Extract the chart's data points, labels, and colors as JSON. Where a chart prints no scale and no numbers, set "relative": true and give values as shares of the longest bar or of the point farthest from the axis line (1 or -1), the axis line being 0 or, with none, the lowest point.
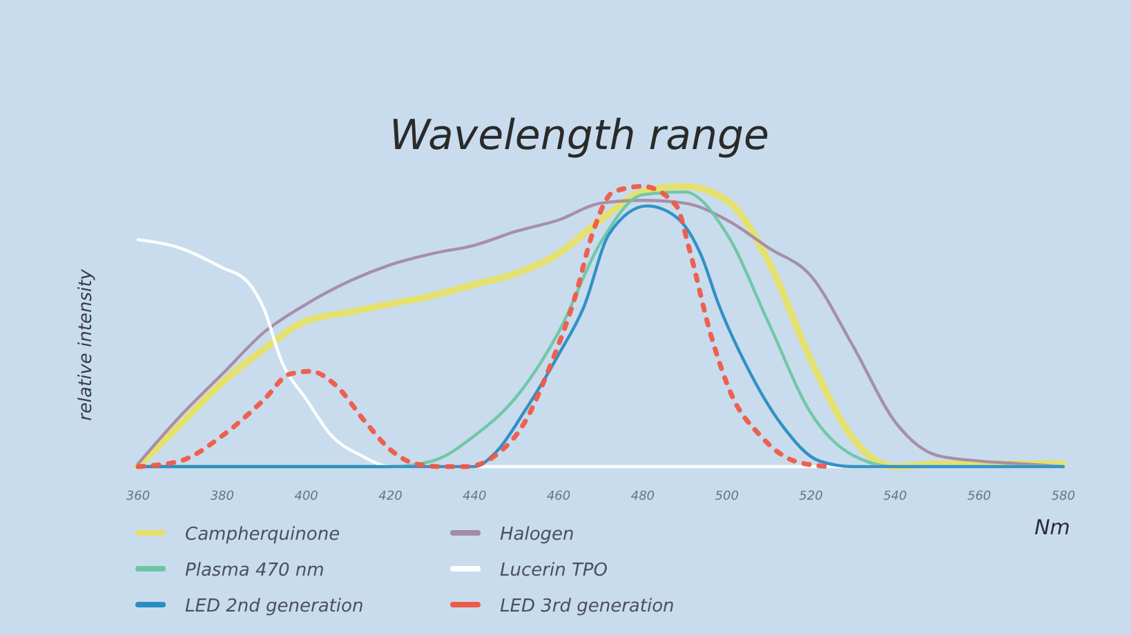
{
  "chart_data": {
    "type": "line",
    "title": "Wavelength range",
    "xlabel": "Nm",
    "ylabel": "relative intensity",
    "relative": true,
    "xlim": [
      360,
      580
    ],
    "xticks": [
      360,
      380,
      400,
      420,
      440,
      460,
      480,
      500,
      520,
      540,
      560,
      580
    ],
    "grid": false,
    "legend": "bottom",
    "marker": "none",
    "tick_labels": "x",
    "series": [
      {
        "name": "Campherquinone",
        "color": "#e6e06a",
        "x": [
          360,
          370,
          380,
          390,
          400,
          410,
          420,
          430,
          440,
          450,
          460,
          470,
          480,
          490,
          500,
          510,
          520,
          530,
          540,
          550,
          560,
          570,
          580
        ],
        "values": [
          0,
          0.15,
          0.3,
          0.42,
          0.52,
          0.55,
          0.58,
          0.61,
          0.65,
          0.69,
          0.76,
          0.88,
          0.98,
          1,
          0.95,
          0.73,
          0.38,
          0.1,
          0,
          0.01,
          0.01,
          0.01,
          0.01
        ]
      },
      {
        "name": "Halogen",
        "color": "#a48aa6",
        "x": [
          360,
          370,
          380,
          390,
          400,
          410,
          420,
          430,
          440,
          450,
          460,
          470,
          480,
          490,
          500,
          510,
          520,
          530,
          540,
          550,
          560,
          570,
          580
        ],
        "values": [
          0.01,
          0.18,
          0.33,
          0.48,
          0.58,
          0.66,
          0.72,
          0.76,
          0.79,
          0.84,
          0.88,
          0.94,
          0.95,
          0.94,
          0.88,
          0.78,
          0.68,
          0.43,
          0.16,
          0.04,
          0.02,
          0.01,
          0
        ]
      },
      {
        "name": "Plasma 470 nm",
        "color": "#6cc6a4",
        "x": [
          360,
          410,
          420,
          430,
          440,
          450,
          460,
          470,
          480,
          490,
          500,
          510,
          520,
          530,
          540,
          580
        ],
        "values": [
          0,
          0,
          0,
          0.02,
          0.11,
          0.25,
          0.48,
          0.8,
          0.97,
          0.98,
          0.83,
          0.51,
          0.19,
          0.04,
          0,
          0
        ]
      },
      {
        "name": "Lucerin TPO",
        "color": "#ffffff",
        "x": [
          360,
          370,
          380,
          386,
          390,
          394,
          400,
          406,
          413,
          420,
          580
        ],
        "values": [
          0.81,
          0.78,
          0.71,
          0.66,
          0.56,
          0.38,
          0.24,
          0.11,
          0.04,
          0,
          0
        ]
      },
      {
        "name": "LED 2nd generation",
        "color": "#2a8cc4",
        "x": [
          360,
          440,
          445,
          452,
          460,
          466,
          472,
          481,
          488,
          494,
          498,
          505,
          513,
          522,
          530,
          580
        ],
        "values": [
          0,
          0,
          0.05,
          0.2,
          0.4,
          0.57,
          0.83,
          0.93,
          0.89,
          0.75,
          0.58,
          0.35,
          0.15,
          0.02,
          0,
          0
        ]
      },
      {
        "name": "LED 3rd generation",
        "color": "#ee5a48",
        "line_style": "dotted",
        "x": [
          360,
          370,
          380,
          390,
          396,
          401,
          407,
          414,
          420,
          426,
          432,
          438,
          445,
          452,
          458,
          464,
          468,
          473,
          480,
          488,
          491,
          496,
          501,
          508,
          516,
          524
        ],
        "values": [
          0,
          0.02,
          0.11,
          0.24,
          0.33,
          0.34,
          0.29,
          0.16,
          0.06,
          0.01,
          0,
          0,
          0.04,
          0.16,
          0.36,
          0.61,
          0.83,
          0.98,
          1,
          0.93,
          0.78,
          0.48,
          0.26,
          0.11,
          0.02,
          0
        ]
      }
    ]
  }
}
